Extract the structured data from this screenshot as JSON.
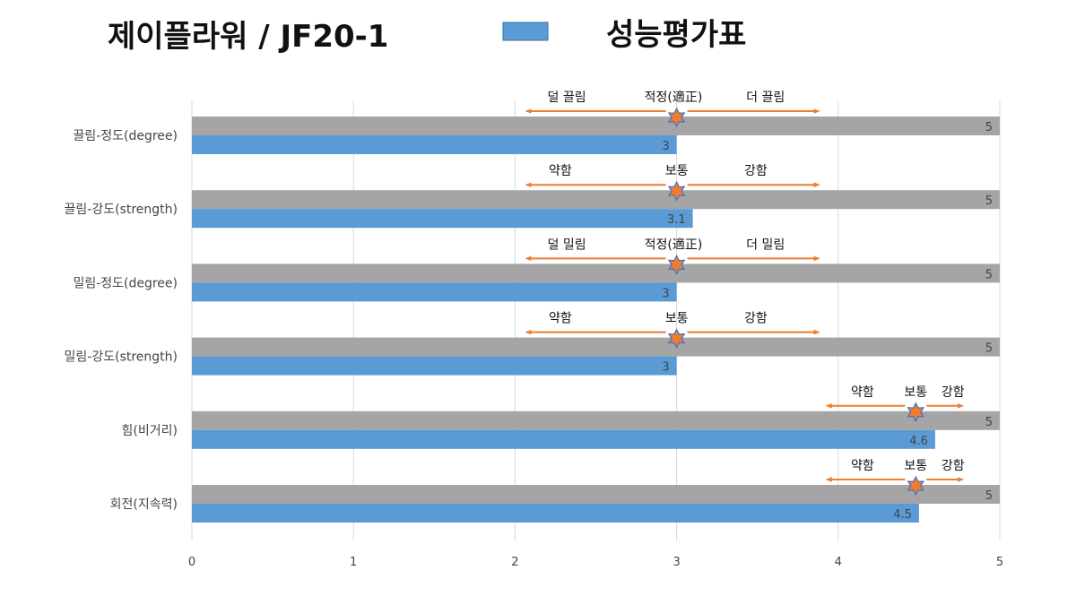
{
  "header": {
    "title": "제이플라워 / JF20-1"
  },
  "chart_data": {
    "type": "bar",
    "orientation": "horizontal",
    "title": "제이플라워 / JF20-1",
    "xlim": [
      0,
      5
    ],
    "x_ticks": [
      "0",
      "1",
      "2",
      "3",
      "4",
      "5"
    ],
    "grid": "vertical",
    "legend_position": "top",
    "categories": [
      "끌림-정도(degree)",
      "끌림-강도(strength)",
      "밀림-정도(degree)",
      "밀림-강도(strength)",
      "힘(비거리)",
      "회전(지속력)"
    ],
    "series": [
      {
        "name": "성능평가표",
        "color": "#5b9bd5",
        "values": [
          3,
          3.1,
          3,
          3,
          4.6,
          4.5
        ],
        "value_labels": [
          "3",
          "3.1",
          "3",
          "3",
          "4.6",
          "4.5"
        ],
        "in_legend": true
      },
      {
        "name": "",
        "color": "#a5a5a5",
        "values": [
          5,
          5,
          5,
          5,
          5,
          5
        ],
        "value_labels": [
          "5",
          "5",
          "5",
          "5",
          "5",
          "5"
        ],
        "in_legend": false
      }
    ],
    "annotations": [
      {
        "center": 3,
        "left": 2.07,
        "right": 3.88,
        "labels": [
          "덜 끌림",
          "적정(適正)",
          "더 끌림"
        ],
        "label_x": [
          2.32,
          2.98,
          3.55
        ]
      },
      {
        "center": 3,
        "left": 2.07,
        "right": 3.88,
        "labels": [
          "약함",
          "보통",
          "강함"
        ],
        "label_x": [
          2.28,
          3.0,
          3.49
        ]
      },
      {
        "center": 3,
        "left": 2.07,
        "right": 3.88,
        "labels": [
          "덜 밀림",
          "적정(適正)",
          "더 밀림"
        ],
        "label_x": [
          2.32,
          2.98,
          3.55
        ]
      },
      {
        "center": 3,
        "left": 2.07,
        "right": 3.88,
        "labels": [
          "약함",
          "보통",
          "강함"
        ],
        "label_x": [
          2.28,
          3.0,
          3.49
        ]
      },
      {
        "center": 4.48,
        "left": 3.93,
        "right": 4.77,
        "labels": [
          "약함",
          "보통",
          "강함"
        ],
        "label_x": [
          4.15,
          4.48,
          4.71
        ]
      },
      {
        "center": 4.48,
        "left": 3.93,
        "right": 4.77,
        "labels": [
          "약함",
          "보통",
          "강함"
        ],
        "label_x": [
          4.15,
          4.48,
          4.71
        ]
      }
    ],
    "colors": {
      "arrow": "#ed7d31",
      "star_fill": "#ed7d31",
      "star_stroke": "#4472c4",
      "grid": "#d9d9d9"
    }
  }
}
